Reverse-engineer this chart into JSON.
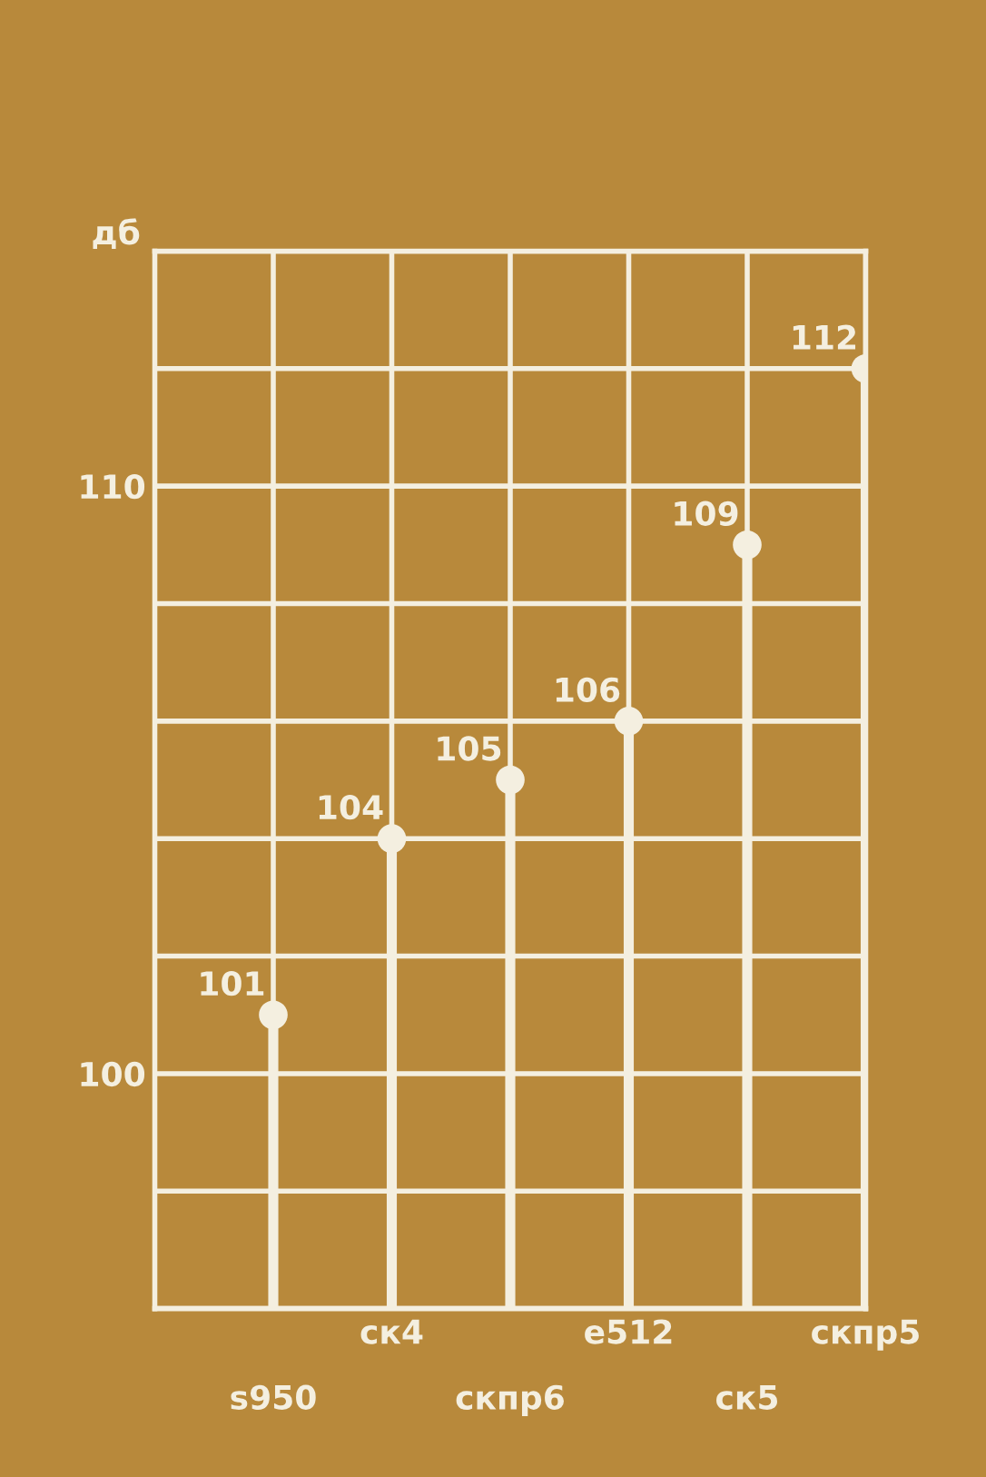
{
  "chart_data": {
    "type": "lollipop",
    "ylabel": "дб",
    "categories": [
      "s950",
      "ск4",
      "скпр6",
      "е512",
      "ск5",
      "скпр5"
    ],
    "values": [
      101,
      104,
      105,
      106,
      109,
      112
    ],
    "color": "#f4efe0",
    "ylim": [
      96,
      114
    ],
    "yticks": [
      {
        "value": 96,
        "label": null
      },
      {
        "value": 98,
        "label": null
      },
      100,
      {
        "value": 102,
        "label": null
      },
      {
        "value": 104,
        "label": null
      },
      {
        "value": 106,
        "label": null
      },
      {
        "value": 108,
        "label": null
      },
      110,
      {
        "value": 112,
        "label": null
      },
      {
        "value": 114,
        "label": null
      }
    ],
    "grid": true,
    "data_labels": true,
    "marker": "circle"
  }
}
